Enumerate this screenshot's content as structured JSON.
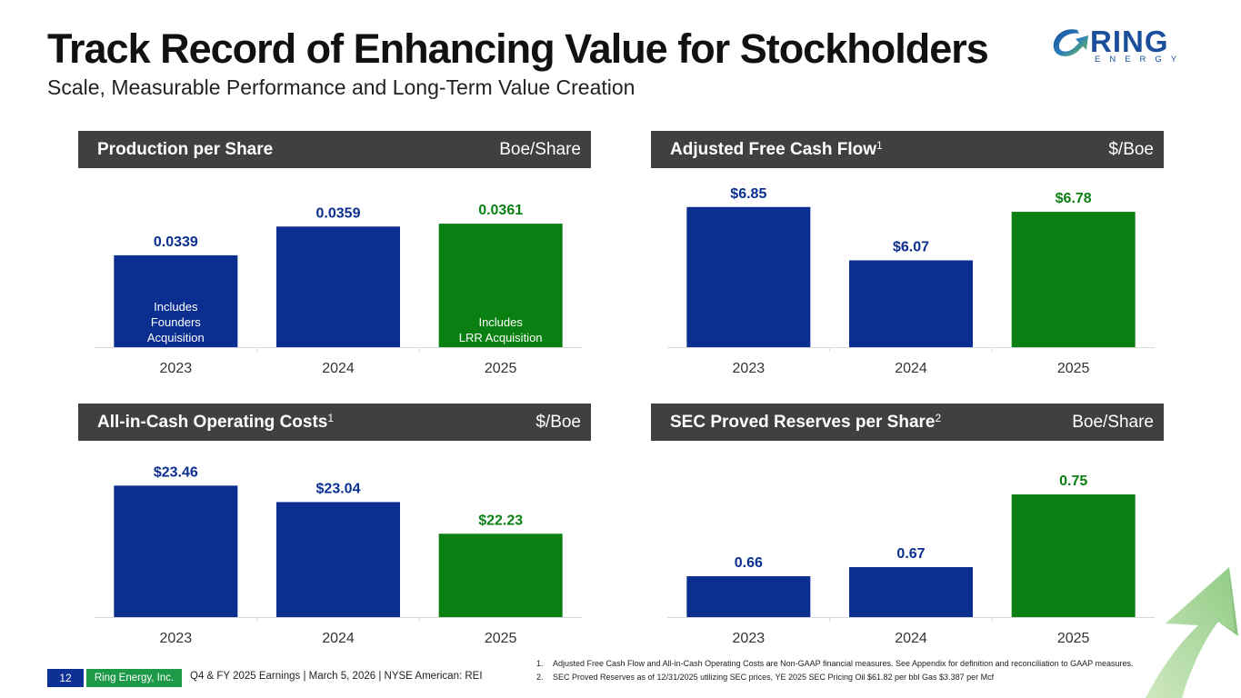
{
  "header": {
    "title": "Track Record of Enhancing Value for Stockholders",
    "subtitle": "Scale, Measurable Performance and Long-Term Value Creation"
  },
  "logo": {
    "name": "RING",
    "tagline": "ENERGY",
    "icon": "ring-swoosh-arrow-icon"
  },
  "colors": {
    "blue": "#0a2f91",
    "green": "#0a7f12",
    "header_bg": "#404040"
  },
  "chart_data": [
    {
      "type": "bar",
      "title": "Production per Share",
      "title_sup": "",
      "unit": "Boe/Share",
      "categories": [
        "2023",
        "2024",
        "2025"
      ],
      "values": [
        0.0339,
        0.0359,
        0.0361
      ],
      "labels": [
        "0.0339",
        "0.0359",
        "0.0361"
      ],
      "bar_colors": [
        "blue",
        "blue",
        "green"
      ],
      "annotations": [
        [
          "Includes",
          "Founders",
          "Acquisition"
        ],
        [],
        [
          "Includes",
          "LRR Acquisition"
        ]
      ],
      "ylim": [
        0.0275,
        0.0375
      ],
      "xlabel": "",
      "ylabel": "",
      "grid": false
    },
    {
      "type": "bar",
      "title": "Adjusted Free Cash Flow",
      "title_sup": "1",
      "unit": "$/Boe",
      "categories": [
        "2023",
        "2024",
        "2025"
      ],
      "values": [
        6.85,
        6.07,
        6.78
      ],
      "labels": [
        "$6.85",
        "$6.07",
        "$6.78"
      ],
      "bar_colors": [
        "blue",
        "blue",
        "green"
      ],
      "annotations": [
        [],
        [],
        []
      ],
      "ylim": [
        4.8,
        6.9
      ],
      "xlabel": "",
      "ylabel": "",
      "grid": false
    },
    {
      "type": "bar",
      "title": "All-in-Cash Operating Costs",
      "title_sup": "1",
      "unit": "$/Boe",
      "categories": [
        "2023",
        "2024",
        "2025"
      ],
      "values": [
        23.46,
        23.04,
        22.23
      ],
      "labels": [
        "$23.46",
        "$23.04",
        "$22.23"
      ],
      "bar_colors": [
        "blue",
        "blue",
        "green"
      ],
      "annotations": [
        [],
        [],
        []
      ],
      "ylim": [
        20.1,
        23.7
      ],
      "xlabel": "",
      "ylabel": "",
      "grid": false
    },
    {
      "type": "bar",
      "title": "SEC Proved Reserves per Share",
      "title_sup": "2",
      "unit": "Boe/Share",
      "categories": [
        "2023",
        "2024",
        "2025"
      ],
      "values": [
        0.66,
        0.67,
        0.75
      ],
      "labels": [
        "0.66",
        "0.67",
        "0.75"
      ],
      "bar_colors": [
        "blue",
        "blue",
        "green"
      ],
      "annotations": [
        [],
        [],
        []
      ],
      "ylim": [
        0.615,
        0.77
      ],
      "xlabel": "",
      "ylabel": "",
      "grid": false
    }
  ],
  "footer": {
    "page_number": "12",
    "company": "Ring Energy, Inc.",
    "meta": "Q4 & FY 2025 Earnings | March 5, 2026 | NYSE American: REI"
  },
  "notes": [
    {
      "num": "1.",
      "text": "Adjusted Free Cash Flow and All-in-Cash Operating Costs are Non-GAAP financial measures. See Appendix for definition and reconciliation to GAAP measures."
    },
    {
      "num": "2.",
      "text": "SEC Proved Reserves as of 12/31/2025 utilizing SEC prices, YE 2025 SEC Pricing Oil $61.82 per bbl Gas $3.387 per Mcf"
    }
  ]
}
